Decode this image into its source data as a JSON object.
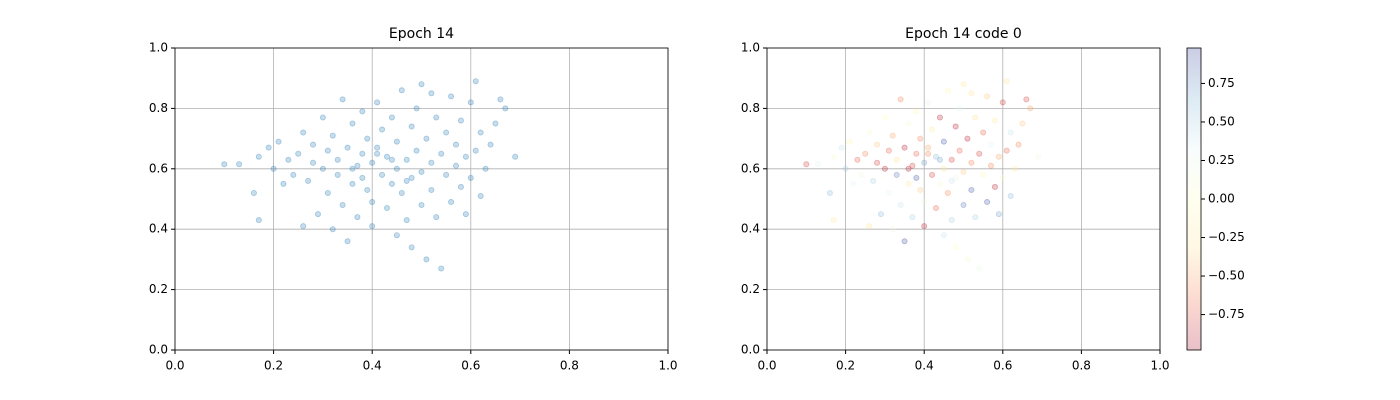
{
  "chart_data": [
    {
      "type": "scatter",
      "title": "Epoch 14",
      "color": "#1f77b4",
      "alpha": 0.25,
      "grid": true,
      "xlim": [
        0,
        1
      ],
      "ylim": [
        0,
        1
      ],
      "xticks": [
        {
          "value": 0,
          "label": "0.0"
        },
        {
          "value": 0.2,
          "label": "0.2"
        },
        {
          "value": 0.4,
          "label": "0.4"
        },
        {
          "value": 0.6,
          "label": "0.6"
        },
        {
          "value": 0.8,
          "label": "0.8"
        },
        {
          "value": 1,
          "label": "1.0"
        }
      ],
      "yticks": [
        {
          "value": 0,
          "label": "0.0"
        },
        {
          "value": 0.2,
          "label": "0.2"
        },
        {
          "value": 0.4,
          "label": "0.4"
        },
        {
          "value": 0.6,
          "label": "0.6"
        },
        {
          "value": 0.8,
          "label": "0.8"
        },
        {
          "value": 1,
          "label": "1.0"
        }
      ],
      "x": [
        0.1,
        0.13,
        0.16,
        0.17,
        0.17,
        0.19,
        0.2,
        0.21,
        0.22,
        0.23,
        0.24,
        0.25,
        0.26,
        0.26,
        0.27,
        0.28,
        0.28,
        0.29,
        0.3,
        0.3,
        0.31,
        0.31,
        0.32,
        0.32,
        0.33,
        0.33,
        0.34,
        0.34,
        0.35,
        0.35,
        0.36,
        0.36,
        0.37,
        0.37,
        0.38,
        0.38,
        0.38,
        0.39,
        0.39,
        0.4,
        0.4,
        0.4,
        0.41,
        0.41,
        0.42,
        0.42,
        0.43,
        0.43,
        0.44,
        0.44,
        0.45,
        0.45,
        0.45,
        0.46,
        0.46,
        0.47,
        0.47,
        0.48,
        0.48,
        0.48,
        0.49,
        0.49,
        0.5,
        0.5,
        0.5,
        0.51,
        0.51,
        0.52,
        0.52,
        0.53,
        0.53,
        0.54,
        0.54,
        0.55,
        0.55,
        0.56,
        0.56,
        0.57,
        0.57,
        0.58,
        0.58,
        0.59,
        0.59,
        0.6,
        0.6,
        0.61,
        0.61,
        0.62,
        0.62,
        0.63,
        0.64,
        0.65,
        0.66,
        0.67,
        0.69,
        0.52,
        0.44,
        0.36,
        0.47,
        0.41
      ],
      "y": [
        0.615,
        0.615,
        0.52,
        0.43,
        0.64,
        0.67,
        0.6,
        0.69,
        0.55,
        0.63,
        0.58,
        0.65,
        0.41,
        0.72,
        0.56,
        0.62,
        0.68,
        0.45,
        0.6,
        0.77,
        0.52,
        0.66,
        0.71,
        0.4,
        0.58,
        0.63,
        0.83,
        0.48,
        0.67,
        0.36,
        0.55,
        0.75,
        0.61,
        0.44,
        0.65,
        0.79,
        0.57,
        0.53,
        0.7,
        0.62,
        0.41,
        0.49,
        0.67,
        0.82,
        0.58,
        0.73,
        0.64,
        0.47,
        0.55,
        0.77,
        0.6,
        0.38,
        0.69,
        0.52,
        0.86,
        0.63,
        0.43,
        0.57,
        0.74,
        0.34,
        0.66,
        0.8,
        0.59,
        0.48,
        0.88,
        0.7,
        0.3,
        0.62,
        0.53,
        0.77,
        0.44,
        0.65,
        0.27,
        0.58,
        0.72,
        0.49,
        0.84,
        0.61,
        0.68,
        0.54,
        0.76,
        0.45,
        0.64,
        0.57,
        0.82,
        0.89,
        0.66,
        0.72,
        0.51,
        0.6,
        0.68,
        0.75,
        0.83,
        0.8,
        0.64,
        0.85,
        0.63,
        0.6,
        0.56,
        0.65
      ]
    },
    {
      "type": "scatter",
      "title": "Epoch 14 code 0",
      "alpha": 0.25,
      "grid": true,
      "xlim": [
        0,
        1
      ],
      "ylim": [
        0,
        1
      ],
      "xticks": [
        {
          "value": 0,
          "label": "0.0"
        },
        {
          "value": 0.2,
          "label": "0.2"
        },
        {
          "value": 0.4,
          "label": "0.4"
        },
        {
          "value": 0.6,
          "label": "0.6"
        },
        {
          "value": 0.8,
          "label": "0.8"
        },
        {
          "value": 1,
          "label": "1.0"
        }
      ],
      "yticks": [
        {
          "value": 0,
          "label": "0.0"
        },
        {
          "value": 0.2,
          "label": "0.2"
        },
        {
          "value": 0.4,
          "label": "0.4"
        },
        {
          "value": 0.6,
          "label": "0.6"
        },
        {
          "value": 0.8,
          "label": "0.8"
        },
        {
          "value": 1,
          "label": "1.0"
        }
      ],
      "colormap": [
        "#a50026",
        "#f46d43",
        "#fee090",
        "#ffffbf",
        "#e0f3f8",
        "#74add1",
        "#313695"
      ],
      "clim": [
        -0.98,
        0.98
      ],
      "cticks": [
        {
          "value": -0.75,
          "label": "−0.75"
        },
        {
          "value": -0.5,
          "label": "−0.50"
        },
        {
          "value": -0.25,
          "label": "−0.25"
        },
        {
          "value": 0,
          "label": "0.00"
        },
        0.25,
        {
          "value": 0.5,
          "label": "0.50"
        },
        0.75
      ],
      "x": [
        0.1,
        0.13,
        0.16,
        0.17,
        0.17,
        0.19,
        0.2,
        0.21,
        0.22,
        0.23,
        0.24,
        0.25,
        0.26,
        0.26,
        0.27,
        0.28,
        0.28,
        0.29,
        0.3,
        0.3,
        0.31,
        0.31,
        0.32,
        0.32,
        0.33,
        0.33,
        0.34,
        0.34,
        0.35,
        0.35,
        0.36,
        0.36,
        0.37,
        0.37,
        0.38,
        0.38,
        0.38,
        0.39,
        0.39,
        0.4,
        0.4,
        0.4,
        0.41,
        0.41,
        0.42,
        0.42,
        0.43,
        0.43,
        0.44,
        0.44,
        0.45,
        0.45,
        0.45,
        0.46,
        0.46,
        0.47,
        0.47,
        0.48,
        0.48,
        0.48,
        0.49,
        0.49,
        0.5,
        0.5,
        0.5,
        0.51,
        0.51,
        0.52,
        0.52,
        0.53,
        0.53,
        0.54,
        0.54,
        0.55,
        0.55,
        0.56,
        0.56,
        0.57,
        0.57,
        0.58,
        0.58,
        0.59,
        0.59,
        0.6,
        0.6,
        0.61,
        0.61,
        0.62,
        0.62,
        0.63,
        0.64,
        0.65,
        0.66,
        0.67,
        0.69,
        0.52,
        0.44,
        0.36,
        0.47,
        0.41
      ],
      "y": [
        0.615,
        0.615,
        0.52,
        0.43,
        0.64,
        0.67,
        0.6,
        0.69,
        0.55,
        0.63,
        0.58,
        0.65,
        0.41,
        0.72,
        0.56,
        0.62,
        0.68,
        0.45,
        0.6,
        0.77,
        0.52,
        0.66,
        0.71,
        0.4,
        0.58,
        0.63,
        0.83,
        0.48,
        0.67,
        0.36,
        0.55,
        0.75,
        0.61,
        0.44,
        0.65,
        0.79,
        0.57,
        0.53,
        0.7,
        0.62,
        0.41,
        0.49,
        0.67,
        0.82,
        0.58,
        0.73,
        0.64,
        0.47,
        0.55,
        0.77,
        0.6,
        0.38,
        0.69,
        0.52,
        0.86,
        0.63,
        0.43,
        0.57,
        0.74,
        0.34,
        0.66,
        0.8,
        0.59,
        0.48,
        0.88,
        0.7,
        0.3,
        0.62,
        0.53,
        0.77,
        0.44,
        0.65,
        0.27,
        0.58,
        0.72,
        0.49,
        0.84,
        0.61,
        0.68,
        0.54,
        0.76,
        0.45,
        0.64,
        0.57,
        0.82,
        0.89,
        0.66,
        0.72,
        0.51,
        0.6,
        0.68,
        0.75,
        0.83,
        0.8,
        0.64,
        0.85,
        0.63,
        0.6,
        0.56,
        0.65
      ],
      "c": [
        -0.8,
        0.3,
        0.6,
        -0.2,
        0.1,
        0.4,
        0.5,
        -0.1,
        0.3,
        -0.7,
        0.2,
        -0.6,
        -0.3,
        0.1,
        0.5,
        -0.8,
        -0.4,
        0.6,
        -0.9,
        0.0,
        0.3,
        -0.7,
        -0.5,
        0.2,
        0.8,
        -0.3,
        -0.6,
        0.4,
        -0.9,
        0.9,
        -0.2,
        0.1,
        -0.8,
        0.5,
        -0.7,
        -0.1,
        0.9,
        -0.4,
        -0.6,
        0.7,
        -0.9,
        0.2,
        -0.5,
        0.3,
        -0.8,
        -0.2,
        0.6,
        -0.7,
        0.1,
        -0.9,
        -0.3,
        0.4,
        0.9,
        -0.6,
        -0.1,
        -0.8,
        0.5,
        0.2,
        -0.9,
        0.0,
        -0.7,
        0.3,
        -0.4,
        0.8,
        -0.2,
        -0.9,
        0.1,
        -0.6,
        0.9,
        -0.3,
        0.5,
        -0.8,
        0.2,
        -0.1,
        -0.7,
        0.9,
        -0.4,
        -0.6,
        0.3,
        -0.9,
        -0.2,
        0.7,
        -0.5,
        0.1,
        -0.8,
        -0.3,
        -0.7,
        0.4,
        0.6,
        -0.2,
        -0.6,
        -0.4,
        -0.8,
        -0.5,
        0.2,
        -0.3,
        0.7,
        -0.9,
        0.4,
        -0.6
      ]
    }
  ]
}
